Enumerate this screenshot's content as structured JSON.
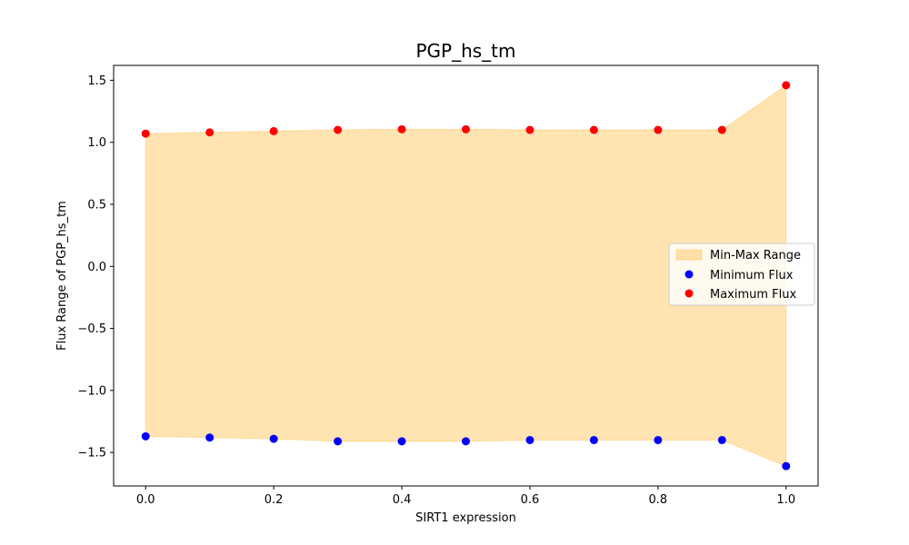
{
  "chart_data": {
    "type": "scatter",
    "title": "PGP_hs_tm",
    "xlabel": "SIRT1 expression",
    "ylabel": "Flux Range of PGP_hs_tm",
    "xlim": [
      -0.05,
      1.05
    ],
    "ylim": [
      -1.77,
      1.62
    ],
    "x_ticks": [
      0.0,
      0.2,
      0.4,
      0.6,
      0.8,
      1.0
    ],
    "x_tick_labels": [
      "0.0",
      "0.2",
      "0.4",
      "0.6",
      "0.8",
      "1.0"
    ],
    "y_ticks": [
      -1.5,
      -1.0,
      -0.5,
      0.0,
      0.5,
      1.0,
      1.5
    ],
    "y_tick_labels": [
      "−1.5",
      "−1.0",
      "−0.5",
      "0.0",
      "0.5",
      "1.0",
      "1.5"
    ],
    "x": [
      0.0,
      0.1,
      0.2,
      0.3,
      0.4,
      0.5,
      0.6,
      0.7,
      0.8,
      0.9,
      1.0
    ],
    "series": [
      {
        "name": "Minimum Flux",
        "color": "#0000ff",
        "values": [
          -1.37,
          -1.38,
          -1.39,
          -1.41,
          -1.41,
          -1.41,
          -1.4,
          -1.4,
          -1.4,
          -1.4,
          -1.61
        ]
      },
      {
        "name": "Maximum Flux",
        "color": "#ff0000",
        "values": [
          1.07,
          1.08,
          1.09,
          1.1,
          1.105,
          1.105,
          1.1,
          1.1,
          1.1,
          1.1,
          1.46
        ]
      }
    ],
    "fill": {
      "name": "Min-Max Range",
      "color": "#ffa500",
      "opacity": 0.3
    },
    "grid": false,
    "legend_position": "center-right"
  }
}
